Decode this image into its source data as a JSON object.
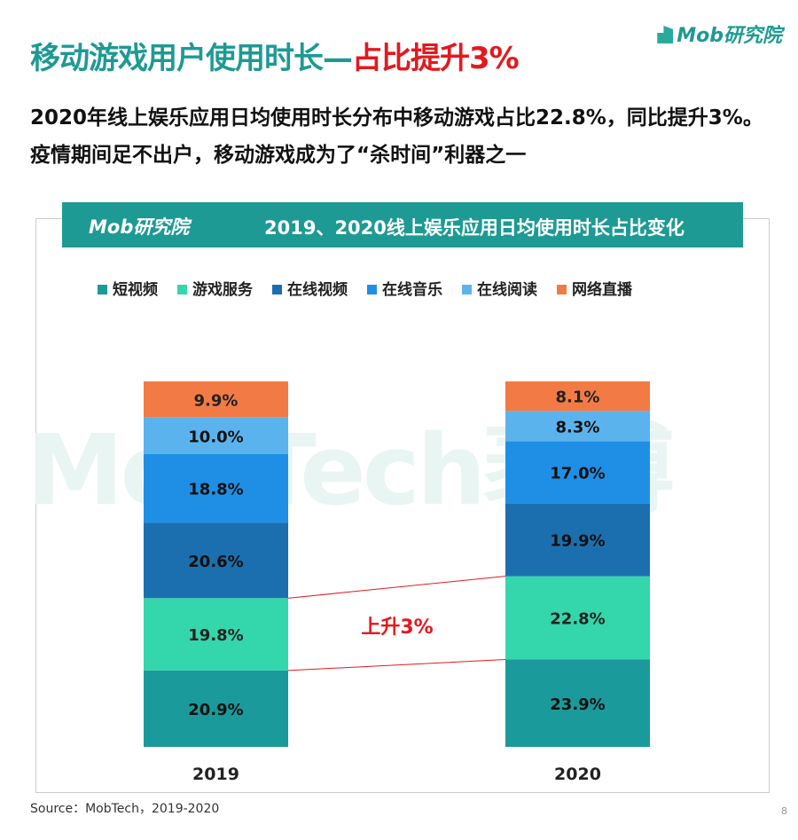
{
  "header": {
    "title_main": "移动游戏用户使用时长—",
    "title_highlight": "占比提升3%",
    "logo": "Mob研究院"
  },
  "subtitle": "2020年线上娱乐应用日均使用时长分布中移动游戏占比22.8%，同比提升3%。疫情期间足不出户，移动游戏成为了“杀时间”利器之一",
  "watermark": "MobTech袤博",
  "chart_data": {
    "type": "bar",
    "stacked": true,
    "title": "2019、2020线上娱乐应用日均使用时长占比变化",
    "logo": "Mob研究院",
    "categories": [
      "2019",
      "2020"
    ],
    "series": [
      {
        "name": "短视频",
        "color": "#1b9a9b",
        "values": [
          20.9,
          23.9
        ]
      },
      {
        "name": "游戏服务",
        "color": "#34d6ab",
        "values": [
          19.8,
          22.8
        ]
      },
      {
        "name": "在线视频",
        "color": "#1c6fae",
        "values": [
          20.6,
          19.9
        ]
      },
      {
        "name": "在线音乐",
        "color": "#1f8fe6",
        "values": [
          18.8,
          17.0
        ]
      },
      {
        "name": "在线阅读",
        "color": "#5bb3ee",
        "values": [
          10.0,
          8.3
        ]
      },
      {
        "name": "网络直播",
        "color": "#f27b45",
        "values": [
          9.9,
          8.1
        ]
      }
    ],
    "ylim": [
      0,
      100
    ],
    "annotation": "上升3%",
    "annotation_color": "#e3191e",
    "legend_position": "top"
  },
  "footer": {
    "source": "Source：MobTech，2019-2020",
    "page": "8"
  }
}
